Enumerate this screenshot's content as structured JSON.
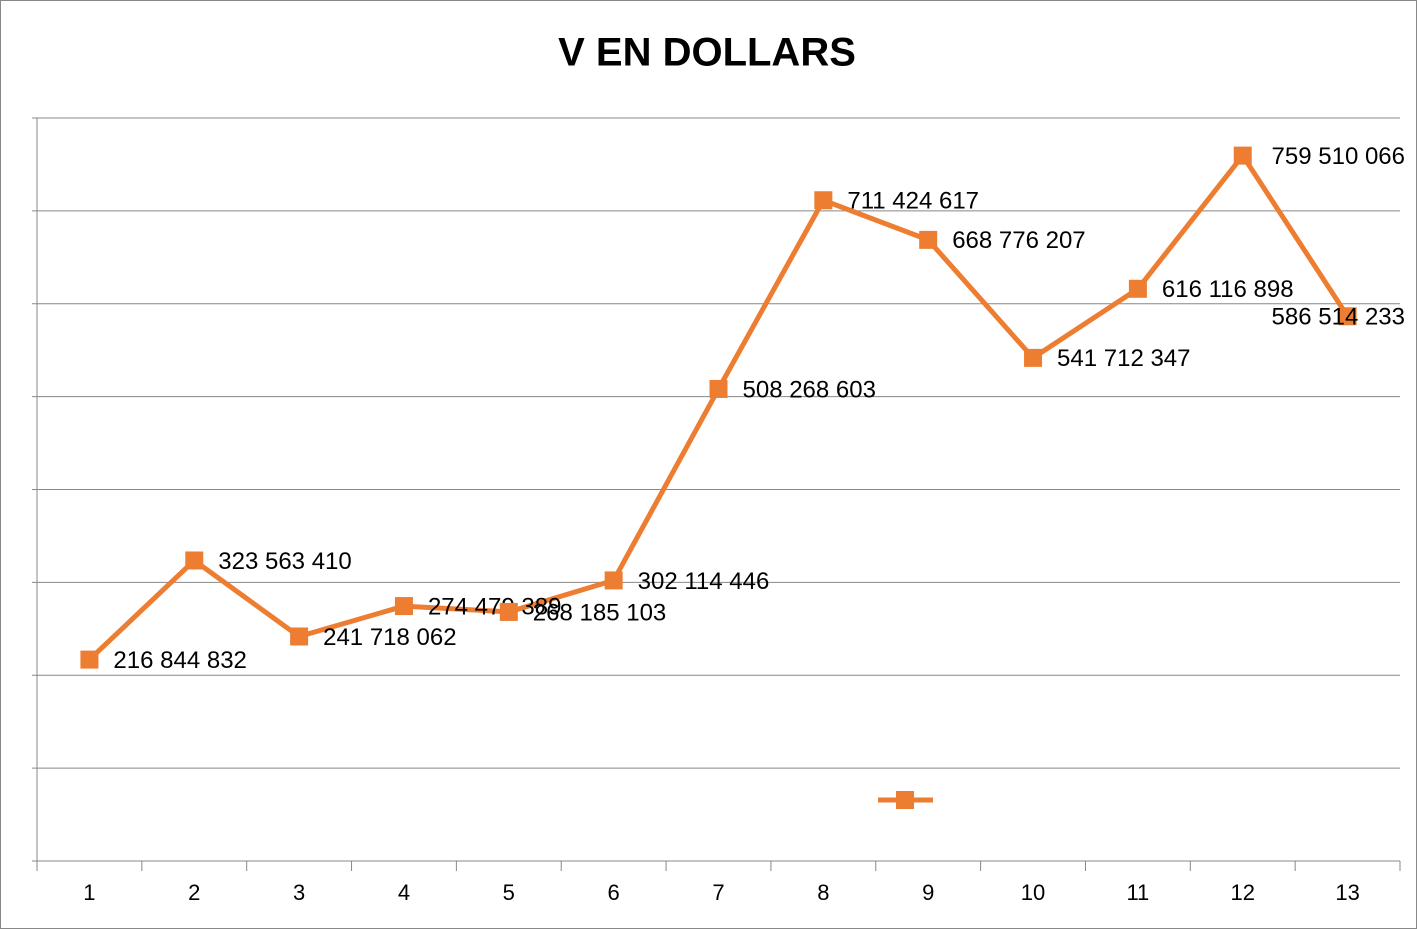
{
  "chart_data": {
    "type": "line",
    "title": "V EN DOLLARS",
    "categories": [
      "1",
      "2",
      "3",
      "4",
      "5",
      "6",
      "7",
      "8",
      "9",
      "10",
      "11",
      "12",
      "13"
    ],
    "series": [
      {
        "color": "#ED7D31",
        "values": [
          216844832,
          323563410,
          241718062,
          274479389,
          268185103,
          302114446,
          508268603,
          711424617,
          668776207,
          541712347,
          616116898,
          759510066,
          586514233
        ],
        "value_labels": [
          "216 844 832",
          "323 563 410",
          "241 718 062",
          "274 479 389",
          "268 185 103",
          "302 114 446",
          "508 268 603",
          "711 424 617",
          "668 776 207",
          "541 712 347",
          "616 116 898",
          "759 510 066",
          "586 514 233"
        ]
      }
    ],
    "ylim": [
      0,
      800000000
    ],
    "yticks": [
      0,
      100000000,
      200000000,
      300000000,
      400000000,
      500000000,
      600000000,
      700000000,
      800000000
    ],
    "grid": true,
    "legend": "bottom"
  }
}
